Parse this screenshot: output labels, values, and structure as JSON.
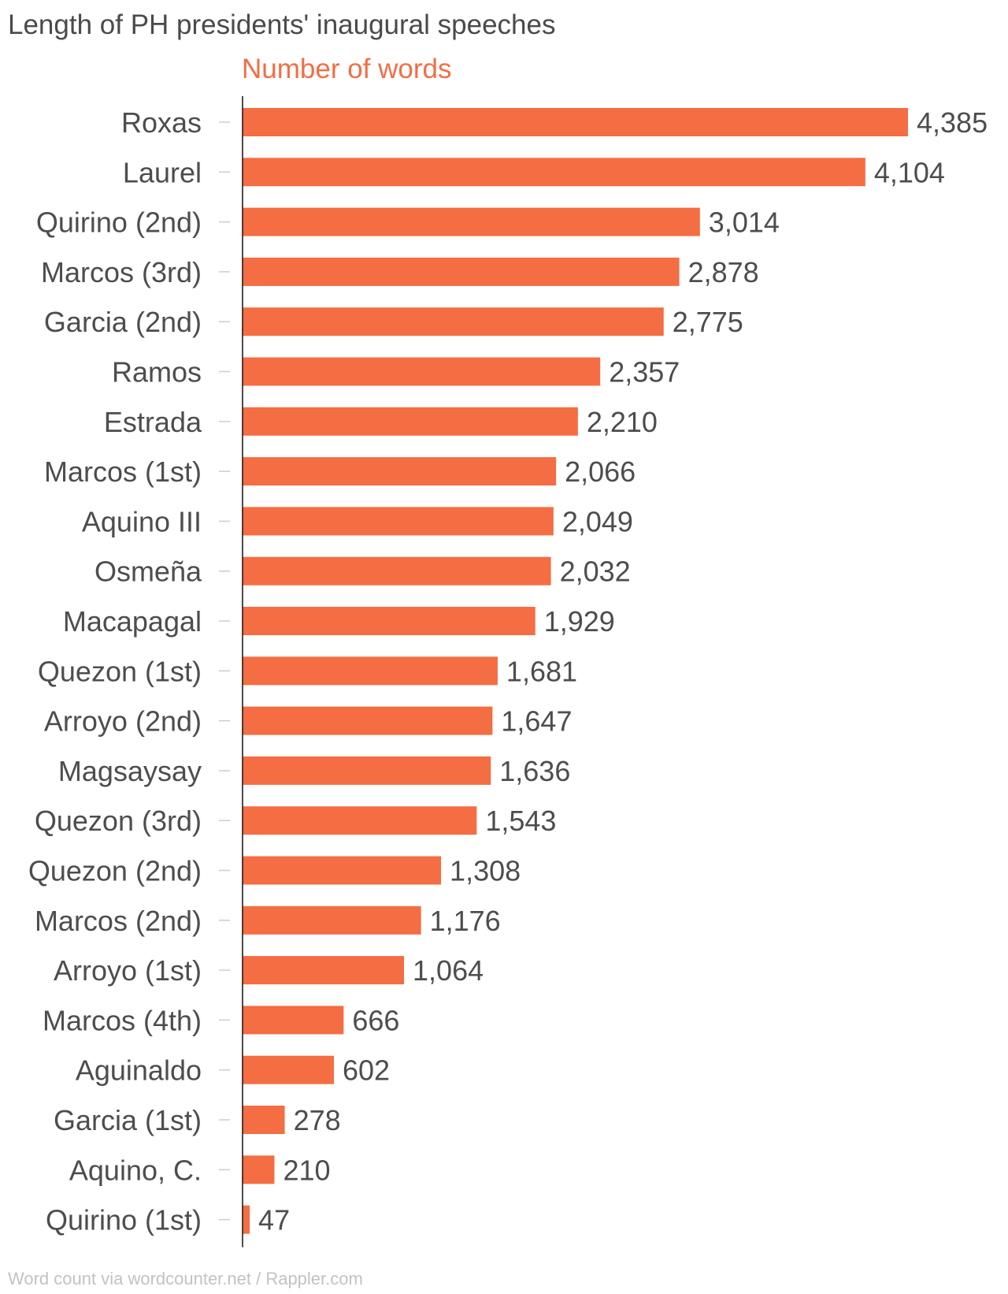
{
  "chart_data": {
    "type": "bar",
    "orientation": "horizontal",
    "title": "Length of PH presidents' inaugural speeches",
    "series": [
      {
        "name": "Number of words",
        "color": "#f46d43",
        "values": [
          4385,
          4104,
          3014,
          2878,
          2775,
          2357,
          2210,
          2066,
          2049,
          2032,
          1929,
          1681,
          1647,
          1636,
          1543,
          1308,
          1176,
          1064,
          666,
          602,
          278,
          210,
          47
        ]
      }
    ],
    "categories": [
      "Roxas",
      "Laurel",
      "Quirino (2nd)",
      "Marcos (3rd)",
      "Garcia (2nd)",
      "Ramos",
      "Estrada",
      "Marcos (1st)",
      "Aquino III",
      "Osmeña",
      "Macapagal",
      "Quezon (1st)",
      "Arroyo (2nd)",
      "Magsaysay",
      "Quezon (3rd)",
      "Quezon (2nd)",
      "Marcos (2nd)",
      "Arroyo (1st)",
      "Marcos (4th)",
      "Aguinaldo",
      "Garcia (1st)",
      "Aquino, C.",
      "Quirino (1st)"
    ],
    "value_labels": [
      "4,385",
      "4,104",
      "3,014",
      "2,878",
      "2,775",
      "2,357",
      "2,210",
      "2,066",
      "2,049",
      "2,032",
      "1,929",
      "1,681",
      "1,647",
      "1,636",
      "1,543",
      "1,308",
      "1,176",
      "1,064",
      "666",
      "602",
      "278",
      "210",
      "47"
    ],
    "xlim": [
      0,
      4385
    ],
    "grid": false,
    "legend": "none",
    "source": "Word count via wordcounter.net / Rappler.com"
  }
}
